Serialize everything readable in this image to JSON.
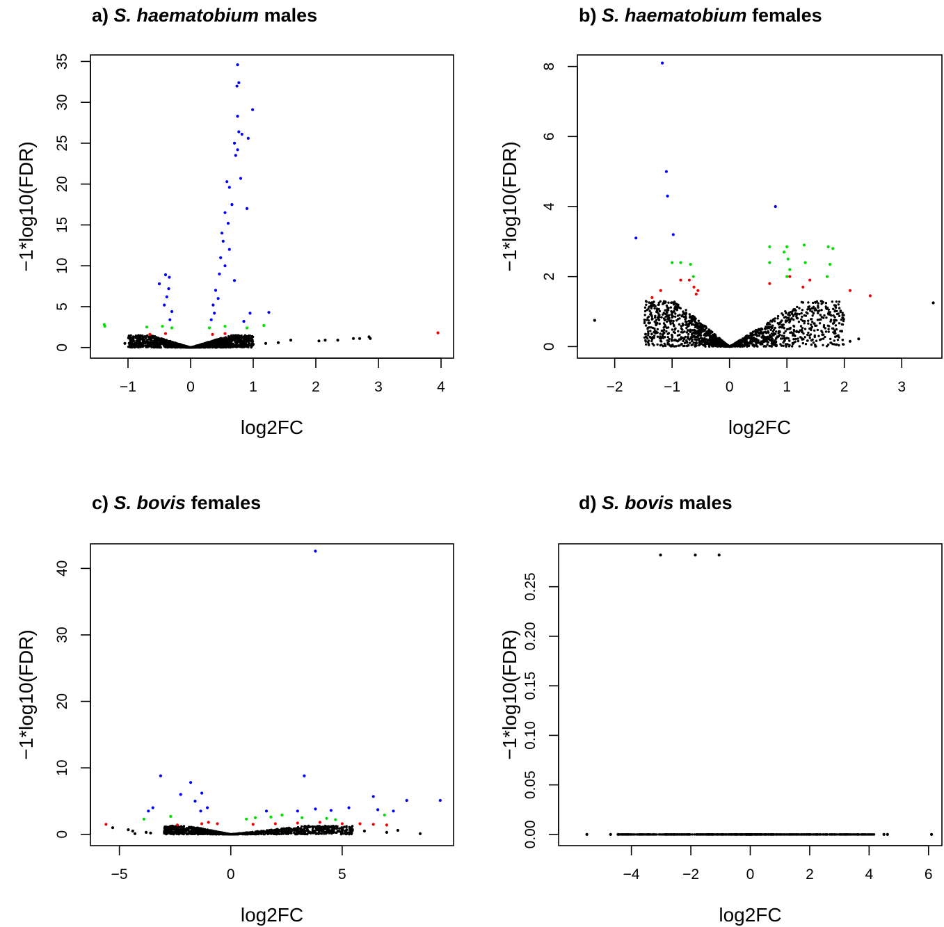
{
  "figure": {
    "colors": {
      "very_significant": "#0000ff",
      "significant": "#00dd00",
      "marginal": "#ee0000",
      "not_significant": "#000000"
    }
  },
  "chart_data": [
    {
      "type": "scatter",
      "panel_letter": "a)",
      "title_species": "S. haematobium",
      "title_group": "males",
      "xlabel": "log2FC",
      "ylabel": "−1*log10(FDR)",
      "xlim": [
        -1.6,
        4.2
      ],
      "ylim": [
        -1.3,
        35.8
      ],
      "xticks": [
        -1,
        0,
        1,
        2,
        3,
        4
      ],
      "yticks": [
        0,
        5,
        10,
        15,
        20,
        25,
        30,
        35
      ],
      "cloud": {
        "x_min": -1.0,
        "x_max": 1.0,
        "y_cap": 1.5,
        "count": 1500
      },
      "points": [
        [
          0.75,
          34.6,
          "b"
        ],
        [
          0.77,
          32.4,
          "b"
        ],
        [
          0.74,
          32.0,
          "b"
        ],
        [
          0.99,
          29.1,
          "b"
        ],
        [
          0.75,
          28.3,
          "b"
        ],
        [
          0.77,
          26.4,
          "b"
        ],
        [
          0.82,
          26.1,
          "b"
        ],
        [
          0.92,
          25.6,
          "b"
        ],
        [
          0.7,
          25.0,
          "b"
        ],
        [
          0.75,
          24.2,
          "b"
        ],
        [
          0.72,
          23.5,
          "b"
        ],
        [
          0.8,
          20.7,
          "b"
        ],
        [
          0.58,
          20.3,
          "b"
        ],
        [
          0.62,
          19.6,
          "b"
        ],
        [
          0.9,
          17.0,
          "b"
        ],
        [
          0.66,
          17.5,
          "b"
        ],
        [
          0.55,
          16.5,
          "b"
        ],
        [
          0.6,
          15.2,
          "b"
        ],
        [
          0.5,
          14.0,
          "b"
        ],
        [
          0.52,
          13.0,
          "b"
        ],
        [
          0.62,
          12.0,
          "b"
        ],
        [
          0.48,
          11.0,
          "b"
        ],
        [
          0.55,
          10.0,
          "b"
        ],
        [
          0.46,
          9.0,
          "b"
        ],
        [
          0.7,
          8.2,
          "b"
        ],
        [
          0.4,
          7.0,
          "b"
        ],
        [
          0.44,
          6.0,
          "b"
        ],
        [
          0.36,
          5.2,
          "b"
        ],
        [
          0.38,
          4.2,
          "b"
        ],
        [
          0.33,
          3.4,
          "b"
        ],
        [
          0.95,
          4.2,
          "b"
        ],
        [
          1.25,
          4.3,
          "b"
        ],
        [
          0.85,
          3.2,
          "b"
        ],
        [
          -0.4,
          8.9,
          "b"
        ],
        [
          -0.34,
          8.6,
          "b"
        ],
        [
          -0.5,
          7.8,
          "b"
        ],
        [
          -0.35,
          7.2,
          "b"
        ],
        [
          -0.38,
          6.2,
          "b"
        ],
        [
          -0.42,
          5.2,
          "b"
        ],
        [
          -0.3,
          4.4,
          "b"
        ],
        [
          -0.33,
          3.4,
          "b"
        ],
        [
          -1.38,
          2.8,
          "g"
        ],
        [
          -1.37,
          2.6,
          "g"
        ],
        [
          -0.7,
          2.5,
          "g"
        ],
        [
          -0.45,
          2.6,
          "g"
        ],
        [
          -0.3,
          2.4,
          "g"
        ],
        [
          0.3,
          2.4,
          "g"
        ],
        [
          0.55,
          2.6,
          "g"
        ],
        [
          0.9,
          2.4,
          "g"
        ],
        [
          1.17,
          2.7,
          "g"
        ],
        [
          -0.65,
          1.6,
          "r"
        ],
        [
          -0.4,
          1.7,
          "r"
        ],
        [
          0.35,
          1.6,
          "r"
        ],
        [
          0.55,
          1.7,
          "r"
        ],
        [
          3.95,
          1.8,
          "r"
        ],
        [
          2.05,
          0.8,
          "k"
        ],
        [
          2.15,
          0.9,
          "k"
        ],
        [
          2.35,
          0.9,
          "k"
        ],
        [
          2.6,
          1.1,
          "k"
        ],
        [
          2.7,
          1.1,
          "k"
        ],
        [
          2.85,
          1.3,
          "k"
        ],
        [
          2.87,
          1.1,
          "k"
        ],
        [
          1.6,
          0.9,
          "k"
        ],
        [
          1.4,
          0.6,
          "k"
        ],
        [
          1.2,
          0.5,
          "k"
        ],
        [
          1.0,
          0.4,
          "k"
        ],
        [
          -1.05,
          0.5,
          "k"
        ]
      ]
    },
    {
      "type": "scatter",
      "panel_letter": "b)",
      "title_species": "S. haematobium",
      "title_group": "females",
      "xlabel": "log2FC",
      "ylabel": "−1*log10(FDR)",
      "xlim": [
        -2.65,
        3.7
      ],
      "ylim": [
        -0.33,
        8.33
      ],
      "xticks": [
        -2,
        -1,
        0,
        1,
        2,
        3
      ],
      "yticks": [
        0,
        2,
        4,
        6,
        8
      ],
      "cloud": {
        "x_min": -1.5,
        "x_max": 2.0,
        "y_cap": 1.3,
        "count": 1600
      },
      "points": [
        [
          -1.17,
          8.1,
          "b"
        ],
        [
          -1.1,
          5.0,
          "b"
        ],
        [
          -1.08,
          4.3,
          "b"
        ],
        [
          -1.63,
          3.1,
          "b"
        ],
        [
          -0.98,
          3.2,
          "b"
        ],
        [
          0.8,
          4.0,
          "b"
        ],
        [
          -1.0,
          2.4,
          "g"
        ],
        [
          -0.85,
          2.4,
          "g"
        ],
        [
          -0.68,
          2.35,
          "g"
        ],
        [
          -0.63,
          2.0,
          "g"
        ],
        [
          0.7,
          2.85,
          "g"
        ],
        [
          0.7,
          2.4,
          "g"
        ],
        [
          0.95,
          2.7,
          "g"
        ],
        [
          1.0,
          2.85,
          "g"
        ],
        [
          1.02,
          2.5,
          "g"
        ],
        [
          1.05,
          2.2,
          "g"
        ],
        [
          1.0,
          2.0,
          "g"
        ],
        [
          1.3,
          2.9,
          "g"
        ],
        [
          1.32,
          2.4,
          "g"
        ],
        [
          1.72,
          2.85,
          "g"
        ],
        [
          1.8,
          2.8,
          "g"
        ],
        [
          1.75,
          2.35,
          "g"
        ],
        [
          1.7,
          2.0,
          "g"
        ],
        [
          -1.35,
          1.4,
          "r"
        ],
        [
          -1.2,
          1.6,
          "r"
        ],
        [
          -0.85,
          1.9,
          "r"
        ],
        [
          -0.7,
          1.9,
          "r"
        ],
        [
          -0.62,
          1.7,
          "r"
        ],
        [
          -0.55,
          1.6,
          "r"
        ],
        [
          -0.58,
          1.5,
          "r"
        ],
        [
          0.7,
          1.8,
          "r"
        ],
        [
          1.05,
          2.0,
          "r"
        ],
        [
          1.28,
          1.7,
          "r"
        ],
        [
          1.4,
          1.9,
          "r"
        ],
        [
          2.1,
          1.6,
          "r"
        ],
        [
          2.45,
          1.45,
          "r"
        ],
        [
          -2.35,
          0.75,
          "k"
        ],
        [
          3.55,
          1.25,
          "k"
        ],
        [
          2.1,
          0.15,
          "k"
        ],
        [
          2.25,
          0.22,
          "k"
        ]
      ]
    },
    {
      "type": "scatter",
      "panel_letter": "c)",
      "title_species": "S. bovis",
      "title_group": "females",
      "xlabel": "log2FC",
      "ylabel": "−1*log10(FDR)",
      "xlim": [
        -6.3,
        10.0
      ],
      "ylim": [
        -1.7,
        43.7
      ],
      "xticks": [
        -5,
        0,
        5
      ],
      "yticks": [
        0,
        10,
        20,
        30,
        40
      ],
      "cloud": {
        "x_min": -3.0,
        "x_max": 5.5,
        "y_cap": 1.3,
        "count": 1400
      },
      "points": [
        [
          3.8,
          42.6,
          "b"
        ],
        [
          -3.15,
          8.8,
          "b"
        ],
        [
          3.3,
          8.8,
          "b"
        ],
        [
          -1.8,
          7.8,
          "b"
        ],
        [
          -2.25,
          6.0,
          "b"
        ],
        [
          -1.3,
          6.2,
          "b"
        ],
        [
          -1.6,
          5.0,
          "b"
        ],
        [
          -1.05,
          4.0,
          "b"
        ],
        [
          -1.35,
          3.5,
          "b"
        ],
        [
          -3.7,
          3.5,
          "b"
        ],
        [
          -3.5,
          4.0,
          "b"
        ],
        [
          1.6,
          3.5,
          "b"
        ],
        [
          3.8,
          3.8,
          "b"
        ],
        [
          4.5,
          3.6,
          "b"
        ],
        [
          5.3,
          4.0,
          "b"
        ],
        [
          6.4,
          5.7,
          "b"
        ],
        [
          6.6,
          3.7,
          "b"
        ],
        [
          7.3,
          3.5,
          "b"
        ],
        [
          7.9,
          5.1,
          "b"
        ],
        [
          9.4,
          5.1,
          "b"
        ],
        [
          3.0,
          3.5,
          "b"
        ],
        [
          -3.9,
          2.3,
          "g"
        ],
        [
          -2.7,
          2.7,
          "g"
        ],
        [
          0.7,
          2.3,
          "g"
        ],
        [
          1.1,
          2.5,
          "g"
        ],
        [
          1.8,
          2.6,
          "g"
        ],
        [
          2.3,
          2.9,
          "g"
        ],
        [
          3.2,
          2.5,
          "g"
        ],
        [
          4.3,
          2.4,
          "g"
        ],
        [
          4.7,
          2.2,
          "g"
        ],
        [
          6.9,
          2.9,
          "g"
        ],
        [
          -5.6,
          1.5,
          "r"
        ],
        [
          -2.4,
          1.4,
          "r"
        ],
        [
          -1.3,
          1.6,
          "r"
        ],
        [
          -1.0,
          1.8,
          "r"
        ],
        [
          -0.6,
          1.6,
          "r"
        ],
        [
          1.0,
          1.5,
          "r"
        ],
        [
          2.0,
          1.6,
          "r"
        ],
        [
          3.0,
          1.7,
          "r"
        ],
        [
          4.0,
          1.8,
          "r"
        ],
        [
          5.0,
          1.6,
          "r"
        ],
        [
          5.8,
          1.6,
          "r"
        ],
        [
          6.4,
          1.5,
          "r"
        ],
        [
          7.0,
          1.4,
          "r"
        ],
        [
          -5.3,
          1.0,
          "k"
        ],
        [
          -4.6,
          0.7,
          "k"
        ],
        [
          -4.4,
          0.5,
          "k"
        ],
        [
          -4.3,
          0.1,
          "k"
        ],
        [
          -3.8,
          0.3,
          "k"
        ],
        [
          6.0,
          0.5,
          "k"
        ],
        [
          7.0,
          0.3,
          "k"
        ],
        [
          7.5,
          0.6,
          "k"
        ],
        [
          8.5,
          0.1,
          "k"
        ],
        [
          -3.6,
          0.2,
          "k"
        ]
      ]
    },
    {
      "type": "scatter",
      "panel_letter": "d)",
      "title_species": "S. bovis",
      "title_group": "males",
      "xlabel": "log2FC",
      "ylabel": "−1*log10(FDR)",
      "xlim": [
        -6.45,
        6.45
      ],
      "ylim": [
        -0.0113,
        0.2933
      ],
      "xticks": [
        -4,
        -2,
        0,
        2,
        4,
        6
      ],
      "yticks": [
        0.0,
        0.05,
        0.1,
        0.15,
        0.2,
        0.25
      ],
      "ytick_labels": [
        "0.00",
        "0.05",
        "0.10",
        "0.15",
        "0.20",
        "0.25"
      ],
      "cloud": {
        "x_min": -4.4,
        "x_max": 4.2,
        "y_cap": 0.0,
        "count": 700
      },
      "points": [
        [
          -3.02,
          0.282,
          "k"
        ],
        [
          -1.85,
          0.282,
          "k"
        ],
        [
          -1.05,
          0.282,
          "k"
        ],
        [
          -5.5,
          0.0,
          "k"
        ],
        [
          -4.7,
          0.0,
          "k"
        ],
        [
          -4.45,
          0.0,
          "k"
        ],
        [
          4.5,
          0.0,
          "k"
        ],
        [
          4.62,
          0.0,
          "k"
        ],
        [
          6.1,
          0.0,
          "k"
        ]
      ]
    }
  ]
}
